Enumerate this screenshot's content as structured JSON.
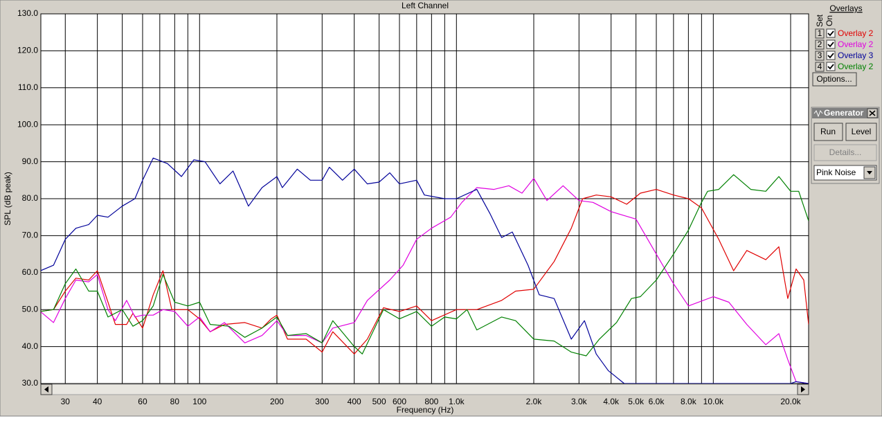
{
  "chart_data": {
    "type": "line",
    "title": "Left Channel",
    "xlabel": "Frequency (Hz)",
    "ylabel": "SPL (dB peak)",
    "xscale": "log",
    "xlim": [
      24.1,
      23500
    ],
    "ylim": [
      30,
      130
    ],
    "grid": true,
    "xticks": [
      30,
      40,
      60,
      80,
      100,
      200,
      300,
      400,
      500,
      600,
      800,
      {
        "value": 1000,
        "label": "1.0k"
      },
      {
        "value": 2000,
        "label": "2.0k"
      },
      {
        "value": 3000,
        "label": "3.0k"
      },
      {
        "value": 4000,
        "label": "4.0k"
      },
      {
        "value": 5000,
        "label": "5.0k"
      },
      {
        "value": 6000,
        "label": "6.0k"
      },
      {
        "value": 8000,
        "label": "8.0k"
      },
      {
        "value": 10000,
        "label": "10.0k"
      },
      {
        "value": 20000,
        "label": "20.0k"
      }
    ],
    "xgrid_minor": [
      50,
      70,
      90,
      700,
      900,
      7000,
      9000
    ],
    "yticks": [
      {
        "value": 130,
        "label": "130.0"
      },
      {
        "value": 120,
        "label": "120.0"
      },
      {
        "value": 110,
        "label": "110.0"
      },
      {
        "value": 100,
        "label": "100.0"
      },
      {
        "value": 90,
        "label": "90.0"
      },
      {
        "value": 80,
        "label": "80.0"
      },
      {
        "value": 70,
        "label": "70.0"
      },
      {
        "value": 60,
        "label": "60.0"
      },
      {
        "value": 50,
        "label": "50.0"
      },
      {
        "value": 40,
        "label": "40.0"
      },
      {
        "value": 30,
        "label": "30.0"
      }
    ],
    "series": [
      {
        "name": "Overlay 2",
        "color": "#e00000",
        "x": [
          24,
          27,
          30,
          33,
          37,
          40,
          44,
          47,
          52,
          55,
          60,
          66,
          72,
          78,
          90,
          100,
          110,
          125,
          150,
          175,
          190,
          200,
          220,
          260,
          300,
          330,
          400,
          450,
          520,
          600,
          700,
          800,
          1000,
          1200,
          1500,
          1700,
          2000,
          2400,
          2800,
          3100,
          3500,
          4000,
          4600,
          5200,
          6000,
          7000,
          8000,
          9000,
          10500,
          12000,
          13500,
          16000,
          18000,
          19500,
          21000,
          22500,
          23500
        ],
        "values": [
          49.5,
          50,
          55,
          58.5,
          58,
          60.5,
          52,
          46,
          46,
          49,
          45,
          54,
          60.5,
          50,
          50,
          47.5,
          44,
          46,
          46.5,
          45,
          47.5,
          48.5,
          42,
          42,
          38.5,
          44,
          38,
          42,
          50.5,
          49.5,
          51,
          47,
          50,
          50,
          52.5,
          55,
          55.5,
          63,
          72,
          80,
          81,
          80.5,
          78.5,
          81.5,
          82.5,
          81,
          80,
          77.5,
          69,
          60.5,
          66,
          63.5,
          67,
          53,
          61,
          58,
          46
        ]
      },
      {
        "name": "Overlay 2",
        "color": "#e000e0",
        "x": [
          24,
          27,
          30,
          33,
          37,
          40,
          44,
          47,
          52,
          56,
          60,
          66,
          72,
          80,
          90,
          100,
          110,
          125,
          150,
          175,
          200,
          220,
          260,
          300,
          330,
          400,
          450,
          550,
          620,
          700,
          800,
          950,
          1050,
          1200,
          1400,
          1600,
          1800,
          2000,
          2250,
          2600,
          3000,
          3400,
          4000,
          5000,
          6000,
          7000,
          8000,
          10000,
          11500,
          13500,
          16000,
          18000,
          19500,
          21000,
          23500
        ],
        "values": [
          49.5,
          46.5,
          53,
          58,
          57.5,
          59.5,
          50,
          47,
          52.5,
          48,
          48.5,
          48.5,
          50,
          49.5,
          45.5,
          48,
          44,
          46.5,
          41,
          43,
          47,
          43,
          43,
          41,
          45,
          46.5,
          52.5,
          58,
          62,
          69,
          72,
          75,
          79,
          83,
          82.5,
          83.5,
          81.5,
          85.5,
          79.5,
          83.5,
          79.5,
          79,
          76.5,
          74.5,
          65,
          57,
          51,
          53.5,
          52,
          46,
          40.5,
          43.5,
          36.5,
          30.5,
          30
        ]
      },
      {
        "name": "Overlay 3",
        "color": "#000099",
        "x": [
          24,
          27,
          30,
          33,
          37,
          40,
          44,
          50,
          56,
          60,
          66,
          75,
          85,
          95,
          105,
          120,
          135,
          155,
          175,
          200,
          210,
          240,
          270,
          300,
          320,
          360,
          400,
          450,
          500,
          550,
          600,
          700,
          750,
          900,
          1000,
          1200,
          1350,
          1500,
          1650,
          1900,
          2100,
          2400,
          2800,
          3150,
          3500,
          3900,
          4500,
          7000,
          20000,
          21000,
          23500
        ],
        "values": [
          60.5,
          62,
          69,
          72,
          73,
          75.5,
          75,
          78,
          80,
          85,
          91,
          89.5,
          86,
          90.5,
          90,
          84,
          87.5,
          78,
          83,
          86,
          83,
          88,
          85,
          85,
          88.5,
          85,
          88,
          84,
          84.5,
          87,
          84,
          85,
          81,
          80,
          80,
          82.5,
          76,
          69.5,
          71,
          62,
          54,
          53,
          42,
          47,
          38,
          33.5,
          30,
          30,
          30,
          30.5,
          30
        ]
      },
      {
        "name": "Overlay 2",
        "color": "#008000",
        "x": [
          24,
          27,
          30,
          33,
          37,
          40,
          44,
          50,
          55,
          60,
          66,
          72,
          80,
          90,
          100,
          110,
          130,
          150,
          175,
          200,
          220,
          260,
          300,
          330,
          400,
          430,
          520,
          600,
          700,
          800,
          900,
          1000,
          1100,
          1200,
          1500,
          1700,
          2000,
          2400,
          2800,
          3200,
          3600,
          4200,
          4800,
          5200,
          6000,
          7000,
          8000,
          9000,
          9500,
          10500,
          12000,
          14000,
          16000,
          18000,
          20000,
          21500,
          23500
        ],
        "values": [
          49.5,
          50,
          57,
          61,
          55,
          55,
          48,
          50,
          45.5,
          47,
          51,
          59.5,
          52,
          51,
          52,
          46,
          45.5,
          42.5,
          45,
          48,
          43,
          43.5,
          41,
          47,
          40,
          38,
          50,
          47.5,
          49.5,
          45.5,
          48,
          47.5,
          50,
          44.5,
          48,
          47,
          42,
          41.5,
          38.5,
          37.5,
          42,
          46.5,
          53,
          53.5,
          58,
          65,
          71.5,
          79,
          82,
          82.5,
          86.5,
          82.5,
          82,
          86,
          82,
          82,
          74
        ]
      }
    ]
  },
  "ui": {
    "overlays_title": "Overlays",
    "set_label": "Set",
    "on_label": "On",
    "set_numbers": [
      "1",
      "2",
      "3",
      "4"
    ],
    "options_button": "Options...",
    "generator": {
      "title": "Generator",
      "run": "Run",
      "level": "Level",
      "details": "Details...",
      "source": "Pink Noise"
    }
  }
}
